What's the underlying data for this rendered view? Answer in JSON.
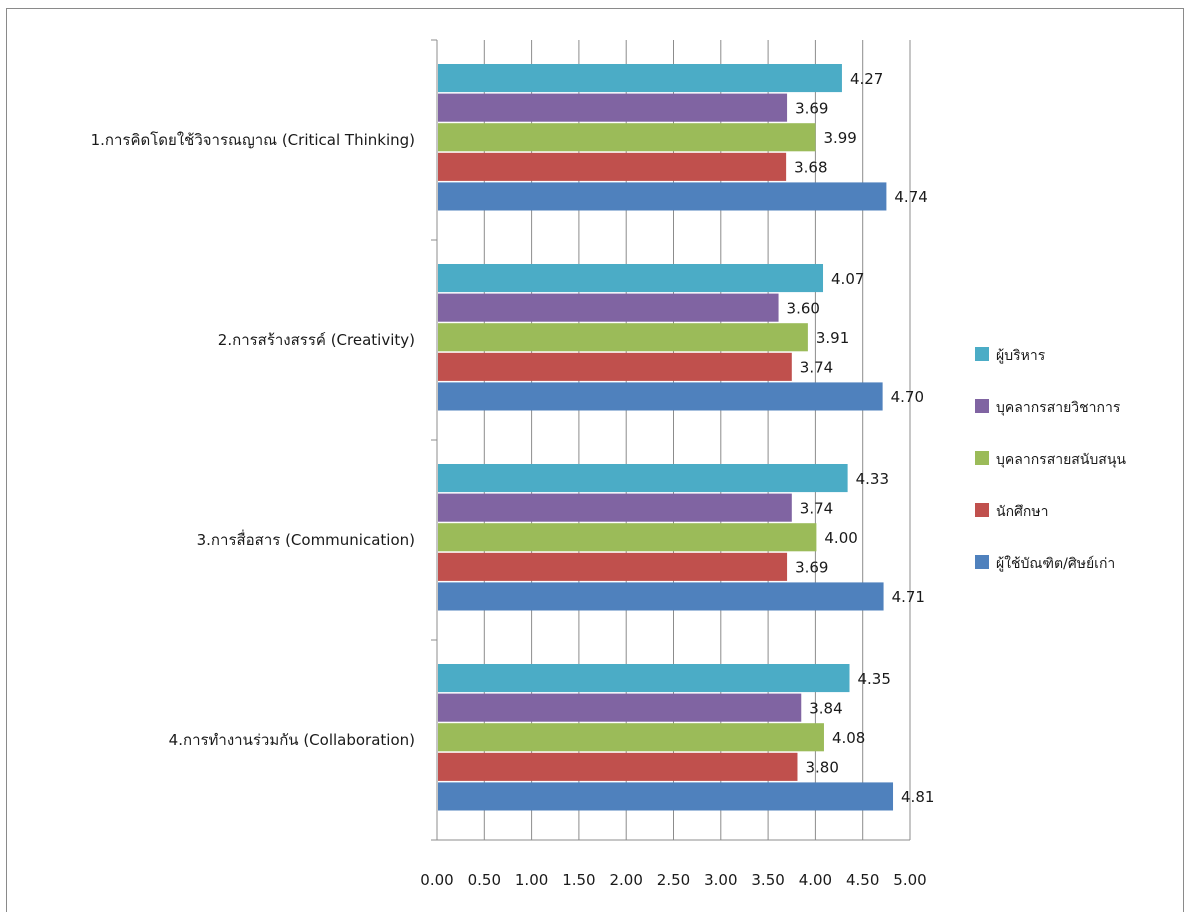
{
  "chart_data": {
    "type": "bar",
    "orientation": "horizontal",
    "categories": [
      "1.การคิดโดยใช้วิจารณญาณ (Critical Thinking)",
      "2.การสร้างสรรค์ (Creativity)",
      "3.การสื่อสาร (Communication)",
      "4.การทำงานร่วมกัน (Collaboration)"
    ],
    "series": [
      {
        "name": "ผู้บริหาร",
        "color": "#4bacc6",
        "values": [
          4.27,
          4.07,
          4.33,
          4.35
        ]
      },
      {
        "name": "บุคลากรสายวิชาการ",
        "color": "#8064a2",
        "values": [
          3.69,
          3.6,
          3.74,
          3.84
        ]
      },
      {
        "name": "บุคลากรสายสนับสนุน",
        "color": "#9bbb59",
        "values": [
          3.99,
          3.91,
          4.0,
          4.08
        ]
      },
      {
        "name": "นักศึกษา",
        "color": "#c0504d",
        "values": [
          3.68,
          3.74,
          3.69,
          3.8
        ]
      },
      {
        "name": "ผู้ใช้บัณฑิต/ศิษย์เก่า",
        "color": "#4f81bd",
        "values": [
          4.74,
          4.7,
          4.71,
          4.81
        ]
      }
    ],
    "xlim": [
      0,
      5
    ],
    "xticks": [
      "0.00",
      "0.50",
      "1.00",
      "1.50",
      "2.00",
      "2.50",
      "3.00",
      "3.50",
      "4.00",
      "4.50",
      "5.00"
    ],
    "grid": true,
    "legend_position": "right"
  }
}
